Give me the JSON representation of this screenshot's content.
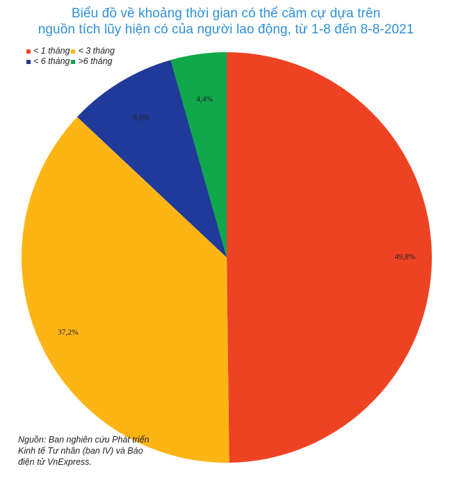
{
  "title_lines": [
    "Biểu đồ về khoảng thời gian có thể cầm cự dựa trên",
    "nguồn tích lũy hiện có của người lao động, từ 1-8 đến 8-8-2021"
  ],
  "source_note": "Nguồn: Ban nghiên cứu Phát triển Kinh tế Tư nhân (ban IV) và Báo điện tử VnExpress.",
  "chart_data": {
    "type": "pie",
    "title": "Biểu đồ về khoảng thời gian có thể cầm cự dựa trên nguồn tích lũy hiện có của người lao động, từ 1-8 đến 8-8-2021",
    "start": "12 o'clock",
    "direction": "clockwise",
    "legend_position": "top-left",
    "slices": [
      {
        "name": "< 1 tháng",
        "value": 49.8,
        "label": "49,8%",
        "color": "#ee4323"
      },
      {
        "name": "< 3 tháng",
        "value": 37.2,
        "label": "37,2%",
        "color": "#fdb515"
      },
      {
        "name": "< 6 tháng",
        "value": 8.6,
        "label": "8,6%",
        "color": "#1f3a99"
      },
      {
        "name": ">6 tháng",
        "value": 4.4,
        "label": "4,4%",
        "color": "#0fa84a"
      }
    ]
  }
}
